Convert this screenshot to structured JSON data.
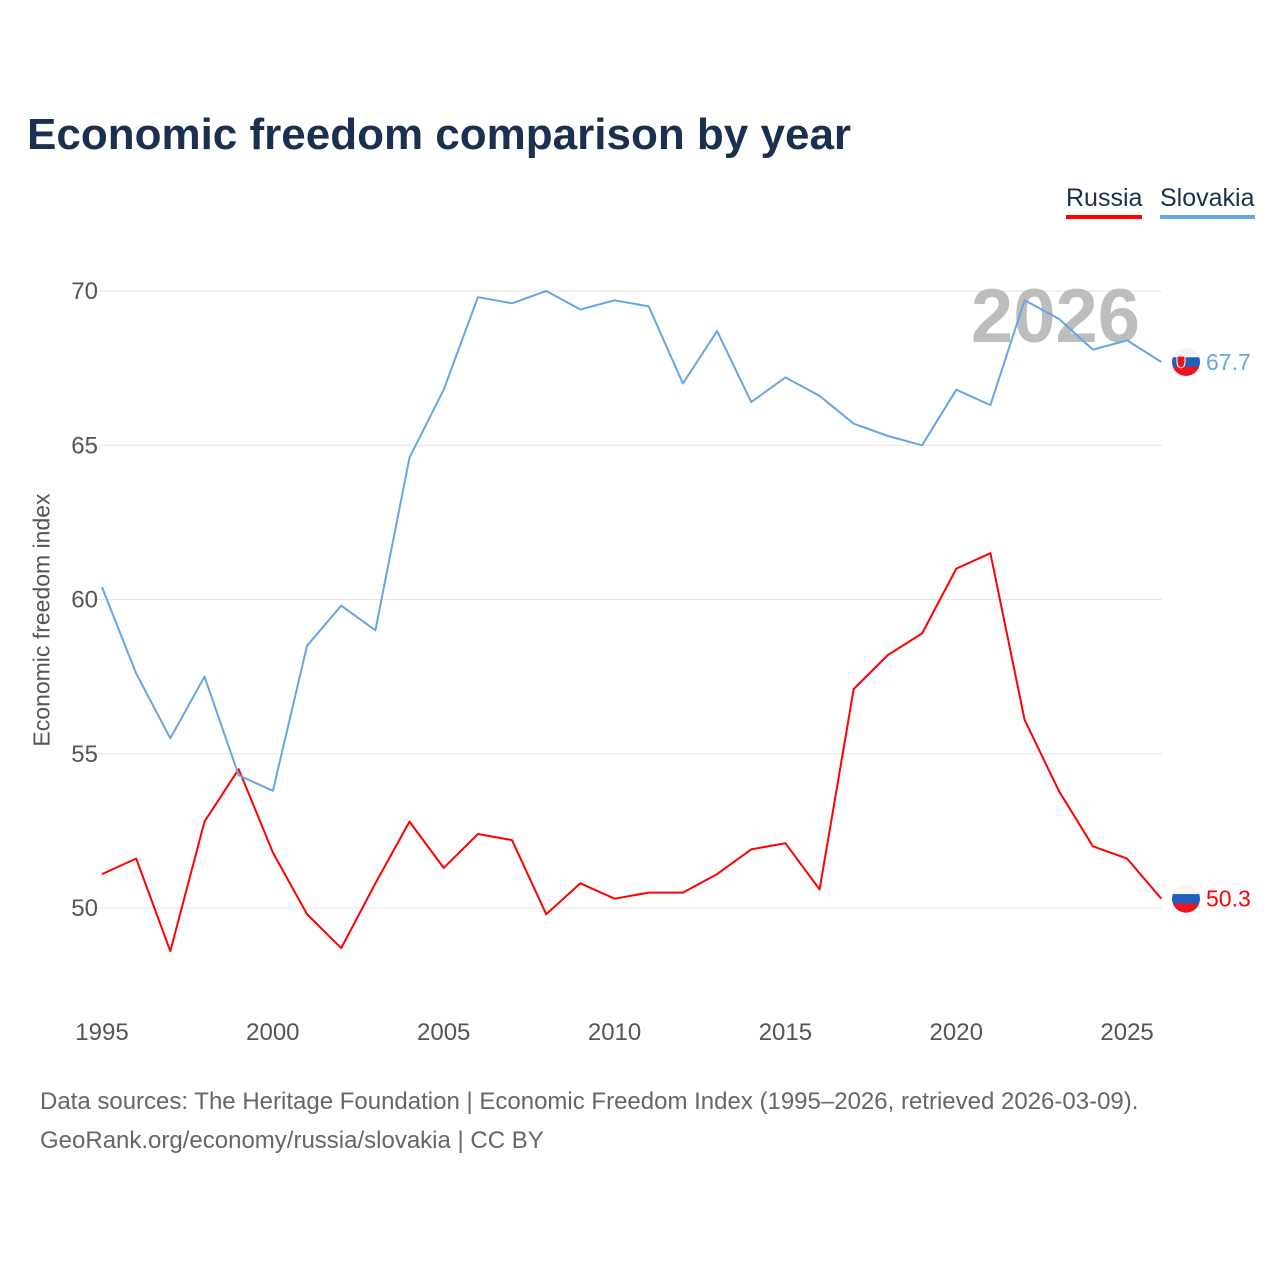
{
  "chart_data": {
    "type": "line",
    "title": "Economic freedom comparison by year",
    "xlabel": "",
    "ylabel": "Economic freedom index",
    "xlim": [
      1995,
      2026
    ],
    "ylim": [
      47,
      72
    ],
    "yticks": [
      50,
      55,
      60,
      65,
      70
    ],
    "xticks": [
      1995,
      2000,
      2005,
      2010,
      2015,
      2020,
      2025
    ],
    "grid": true,
    "legend_position": "top-right",
    "watermark_year": "2026",
    "x": [
      1995,
      1996,
      1997,
      1998,
      1999,
      2000,
      2001,
      2002,
      2003,
      2004,
      2005,
      2006,
      2007,
      2008,
      2009,
      2010,
      2011,
      2012,
      2013,
      2014,
      2015,
      2016,
      2017,
      2018,
      2019,
      2020,
      2021,
      2022,
      2023,
      2024,
      2025,
      2026
    ],
    "series": [
      {
        "name": "Russia",
        "color": "#ff0000",
        "end_label": "50.3",
        "values": [
          51.1,
          51.6,
          48.6,
          52.8,
          54.5,
          51.8,
          49.8,
          48.7,
          50.8,
          52.8,
          51.3,
          52.4,
          52.2,
          49.8,
          50.8,
          50.3,
          50.5,
          50.5,
          51.1,
          51.9,
          52.1,
          50.6,
          57.1,
          58.2,
          58.9,
          61.0,
          61.5,
          56.1,
          53.8,
          52.0,
          51.6,
          50.3
        ]
      },
      {
        "name": "Slovakia",
        "color": "#63a6e8",
        "end_label": "67.7",
        "values": [
          60.4,
          57.6,
          55.5,
          57.5,
          54.3,
          53.8,
          58.5,
          59.8,
          59.0,
          64.6,
          66.8,
          69.8,
          69.6,
          70.0,
          69.4,
          69.7,
          69.5,
          67.0,
          68.7,
          66.4,
          67.2,
          66.6,
          65.7,
          65.3,
          65.0,
          66.8,
          66.3,
          69.7,
          69.1,
          68.1,
          68.4,
          67.7
        ]
      }
    ]
  },
  "footer": {
    "line1": "Data sources: The Heritage Foundation | Economic Freedom Index (1995–2026, retrieved 2026-03-09).",
    "line2": "GeoRank.org/economy/russia/slovakia | CC BY"
  }
}
